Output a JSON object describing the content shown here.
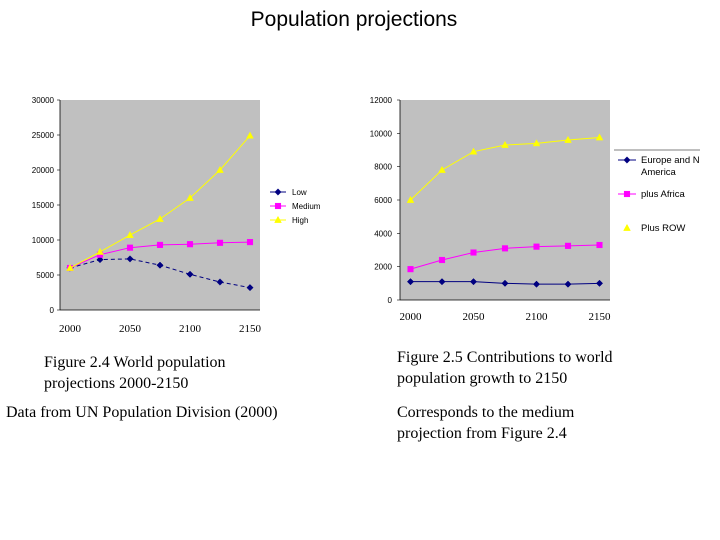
{
  "title": "Population projections",
  "colors": {
    "low": "#000080",
    "medium": "#ff00ff",
    "high": "#ffff00",
    "plot_bg": "#c0c0c0"
  },
  "chart_data": [
    {
      "type": "line",
      "x": [
        2000,
        2025,
        2050,
        2075,
        2100,
        2125,
        2150
      ],
      "xticks": [
        "2000",
        "2050",
        "2100",
        "2150"
      ],
      "ylim": [
        0,
        30000
      ],
      "yticks": [
        "0",
        "5000",
        "10000",
        "15000",
        "20000",
        "25000",
        "30000"
      ],
      "legend_position": "right",
      "grid": false,
      "series": [
        {
          "name": "Low",
          "values": [
            6000,
            7200,
            7300,
            6400,
            5100,
            4000,
            3200
          ]
        },
        {
          "name": "Medium",
          "values": [
            6000,
            7900,
            8900,
            9300,
            9400,
            9600,
            9700
          ]
        },
        {
          "name": "High",
          "values": [
            6000,
            8300,
            10700,
            13000,
            16000,
            20000,
            24900
          ]
        }
      ]
    },
    {
      "type": "line",
      "x": [
        2000,
        2025,
        2050,
        2075,
        2100,
        2125,
        2150
      ],
      "xticks": [
        "2000",
        "2050",
        "2100",
        "2150"
      ],
      "ylim": [
        0,
        12000
      ],
      "yticks": [
        "0",
        "2000",
        "4000",
        "6000",
        "8000",
        "10000",
        "12000"
      ],
      "legend_position": "right",
      "grid": false,
      "series": [
        {
          "name": "Europe and N America",
          "values": [
            1100,
            1100,
            1100,
            1000,
            950,
            950,
            1000
          ]
        },
        {
          "name": "plus Africa",
          "values": [
            1850,
            2400,
            2850,
            3100,
            3200,
            3250,
            3300
          ]
        },
        {
          "name": "Plus ROW",
          "values": [
            6000,
            7800,
            8900,
            9300,
            9400,
            9600,
            9750
          ]
        }
      ]
    }
  ],
  "captions": {
    "fig24_line1": "Figure 2.4 World population",
    "fig24_line2": "projections 2000-2150",
    "fig24_source": "Data from UN Population Division (2000)",
    "fig25_line1": "Figure 2.5 Contributions to world",
    "fig25_line2": "population growth to 2150",
    "fig25_note1": "Corresponds to the medium",
    "fig25_note2": "projection from Figure 2.4"
  }
}
